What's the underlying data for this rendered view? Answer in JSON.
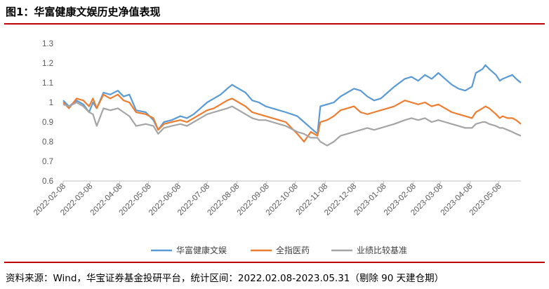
{
  "title": "图1：华富健康文娱历史净值表现",
  "source": "资料来源：Wind，华宝证券基金投研平台，统计区间：2022.02.08-2023.05.31（剔除 90 天建仓期）",
  "colors": {
    "rule": "#c00000",
    "series": [
      "#5b9bd5",
      "#ed7d31",
      "#a5a5a5"
    ]
  },
  "chart_data": {
    "type": "line",
    "title": "",
    "xlabel": "",
    "ylabel": "",
    "ylim": [
      0.6,
      1.3
    ],
    "yticks": [
      "0.6",
      "0.7",
      "0.8",
      "0.9",
      "1",
      "1.1",
      "1.2",
      "1.3"
    ],
    "xlim": [
      "2022-02-08",
      "2023-05-31"
    ],
    "xticks": [
      "2022-02-08",
      "2022-03-08",
      "2022-04-08",
      "2022-05-08",
      "2022-06-08",
      "2022-07-08",
      "2022-08-08",
      "2022-09-08",
      "2022-10-08",
      "2022-11-08",
      "2022-12-08",
      "2023-01-08",
      "2023-02-08",
      "2023-03-08",
      "2023-04-08",
      "2023-05-08"
    ],
    "grid": false,
    "legend": "bottom",
    "series": [
      {
        "name": "华富健康文娱",
        "points": [
          [
            "2022-02-08",
            1.01
          ],
          [
            "2022-02-14",
            0.98
          ],
          [
            "2022-02-22",
            1.01
          ],
          [
            "2022-03-01",
            0.99
          ],
          [
            "2022-03-07",
            0.95
          ],
          [
            "2022-03-11",
            1.0
          ],
          [
            "2022-03-15",
            0.97
          ],
          [
            "2022-03-22",
            1.05
          ],
          [
            "2022-03-29",
            1.04
          ],
          [
            "2022-04-06",
            1.06
          ],
          [
            "2022-04-12",
            1.03
          ],
          [
            "2022-04-18",
            1.04
          ],
          [
            "2022-04-25",
            0.96
          ],
          [
            "2022-05-05",
            0.95
          ],
          [
            "2022-05-13",
            0.91
          ],
          [
            "2022-05-18",
            0.86
          ],
          [
            "2022-05-24",
            0.9
          ],
          [
            "2022-06-01",
            0.91
          ],
          [
            "2022-06-10",
            0.93
          ],
          [
            "2022-06-17",
            0.92
          ],
          [
            "2022-06-24",
            0.94
          ],
          [
            "2022-07-01",
            0.97
          ],
          [
            "2022-07-08",
            1.0
          ],
          [
            "2022-07-15",
            1.02
          ],
          [
            "2022-07-22",
            1.04
          ],
          [
            "2022-07-29",
            1.07
          ],
          [
            "2022-08-03",
            1.09
          ],
          [
            "2022-08-10",
            1.07
          ],
          [
            "2022-08-17",
            1.05
          ],
          [
            "2022-08-24",
            1.01
          ],
          [
            "2022-08-31",
            1.0
          ],
          [
            "2022-09-07",
            0.98
          ],
          [
            "2022-09-14",
            0.97
          ],
          [
            "2022-09-21",
            0.96
          ],
          [
            "2022-09-28",
            0.95
          ],
          [
            "2022-10-10",
            0.93
          ],
          [
            "2022-10-17",
            0.9
          ],
          [
            "2022-10-24",
            0.87
          ],
          [
            "2022-10-31",
            0.84
          ],
          [
            "2022-11-03",
            0.98
          ],
          [
            "2022-11-10",
            0.99
          ],
          [
            "2022-11-17",
            1.0
          ],
          [
            "2022-11-24",
            1.03
          ],
          [
            "2022-12-01",
            1.05
          ],
          [
            "2022-12-08",
            1.07
          ],
          [
            "2022-12-15",
            1.06
          ],
          [
            "2022-12-22",
            1.03
          ],
          [
            "2022-12-29",
            1.01
          ],
          [
            "2023-01-05",
            1.02
          ],
          [
            "2023-01-12",
            1.05
          ],
          [
            "2023-01-19",
            1.08
          ],
          [
            "2023-01-30",
            1.12
          ],
          [
            "2023-02-06",
            1.13
          ],
          [
            "2023-02-13",
            1.11
          ],
          [
            "2023-02-20",
            1.14
          ],
          [
            "2023-02-27",
            1.12
          ],
          [
            "2023-03-06",
            1.15
          ],
          [
            "2023-03-13",
            1.12
          ],
          [
            "2023-03-20",
            1.09
          ],
          [
            "2023-03-27",
            1.07
          ],
          [
            "2023-04-03",
            1.06
          ],
          [
            "2023-04-10",
            1.08
          ],
          [
            "2023-04-14",
            1.15
          ],
          [
            "2023-04-21",
            1.17
          ],
          [
            "2023-04-24",
            1.19
          ],
          [
            "2023-04-28",
            1.17
          ],
          [
            "2023-05-05",
            1.14
          ],
          [
            "2023-05-09",
            1.11
          ],
          [
            "2023-05-12",
            1.12
          ],
          [
            "2023-05-17",
            1.13
          ],
          [
            "2023-05-22",
            1.14
          ],
          [
            "2023-05-26",
            1.12
          ],
          [
            "2023-05-31",
            1.1
          ]
        ]
      },
      {
        "name": "全指医药",
        "points": [
          [
            "2022-02-08",
            1.0
          ],
          [
            "2022-02-14",
            0.97
          ],
          [
            "2022-02-22",
            1.02
          ],
          [
            "2022-03-01",
            1.01
          ],
          [
            "2022-03-07",
            0.98
          ],
          [
            "2022-03-11",
            1.02
          ],
          [
            "2022-03-15",
            0.97
          ],
          [
            "2022-03-22",
            1.04
          ],
          [
            "2022-03-29",
            1.02
          ],
          [
            "2022-04-06",
            1.04
          ],
          [
            "2022-04-12",
            1.01
          ],
          [
            "2022-04-18",
            1.0
          ],
          [
            "2022-04-25",
            0.95
          ],
          [
            "2022-05-05",
            0.94
          ],
          [
            "2022-05-13",
            0.92
          ],
          [
            "2022-05-18",
            0.86
          ],
          [
            "2022-05-24",
            0.89
          ],
          [
            "2022-06-01",
            0.9
          ],
          [
            "2022-06-10",
            0.91
          ],
          [
            "2022-06-17",
            0.9
          ],
          [
            "2022-06-24",
            0.92
          ],
          [
            "2022-07-01",
            0.94
          ],
          [
            "2022-07-08",
            0.96
          ],
          [
            "2022-07-15",
            0.97
          ],
          [
            "2022-07-22",
            0.99
          ],
          [
            "2022-07-29",
            1.01
          ],
          [
            "2022-08-03",
            1.02
          ],
          [
            "2022-08-10",
            1.0
          ],
          [
            "2022-08-17",
            0.98
          ],
          [
            "2022-08-24",
            0.95
          ],
          [
            "2022-08-31",
            0.94
          ],
          [
            "2022-09-07",
            0.93
          ],
          [
            "2022-09-14",
            0.92
          ],
          [
            "2022-09-21",
            0.91
          ],
          [
            "2022-09-28",
            0.9
          ],
          [
            "2022-10-10",
            0.84
          ],
          [
            "2022-10-17",
            0.8
          ],
          [
            "2022-10-24",
            0.85
          ],
          [
            "2022-10-31",
            0.83
          ],
          [
            "2022-11-03",
            0.9
          ],
          [
            "2022-11-10",
            0.91
          ],
          [
            "2022-11-17",
            0.93
          ],
          [
            "2022-11-24",
            0.96
          ],
          [
            "2022-12-01",
            0.97
          ],
          [
            "2022-12-08",
            0.98
          ],
          [
            "2022-12-15",
            0.95
          ],
          [
            "2022-12-22",
            0.94
          ],
          [
            "2022-12-29",
            0.95
          ],
          [
            "2023-01-05",
            0.96
          ],
          [
            "2023-01-12",
            0.97
          ],
          [
            "2023-01-19",
            0.98
          ],
          [
            "2023-01-30",
            1.01
          ],
          [
            "2023-02-06",
            1.0
          ],
          [
            "2023-02-13",
            0.99
          ],
          [
            "2023-02-20",
            1.0
          ],
          [
            "2023-02-27",
            0.98
          ],
          [
            "2023-03-06",
            0.99
          ],
          [
            "2023-03-13",
            0.97
          ],
          [
            "2023-03-20",
            0.95
          ],
          [
            "2023-03-27",
            0.94
          ],
          [
            "2023-04-03",
            0.93
          ],
          [
            "2023-04-10",
            0.92
          ],
          [
            "2023-04-14",
            0.95
          ],
          [
            "2023-04-21",
            0.97
          ],
          [
            "2023-04-24",
            0.98
          ],
          [
            "2023-04-28",
            0.97
          ],
          [
            "2023-05-05",
            0.94
          ],
          [
            "2023-05-09",
            0.92
          ],
          [
            "2023-05-12",
            0.93
          ],
          [
            "2023-05-17",
            0.92
          ],
          [
            "2023-05-22",
            0.92
          ],
          [
            "2023-05-26",
            0.91
          ],
          [
            "2023-05-31",
            0.89
          ]
        ]
      },
      {
        "name": "业绩比较基准",
        "points": [
          [
            "2022-02-08",
            0.99
          ],
          [
            "2022-02-14",
            0.98
          ],
          [
            "2022-02-22",
            1.0
          ],
          [
            "2022-03-01",
            0.98
          ],
          [
            "2022-03-07",
            0.95
          ],
          [
            "2022-03-11",
            0.94
          ],
          [
            "2022-03-15",
            0.88
          ],
          [
            "2022-03-22",
            0.97
          ],
          [
            "2022-03-29",
            0.96
          ],
          [
            "2022-04-06",
            0.97
          ],
          [
            "2022-04-12",
            0.95
          ],
          [
            "2022-04-18",
            0.93
          ],
          [
            "2022-04-25",
            0.88
          ],
          [
            "2022-05-05",
            0.89
          ],
          [
            "2022-05-13",
            0.88
          ],
          [
            "2022-05-18",
            0.84
          ],
          [
            "2022-05-24",
            0.87
          ],
          [
            "2022-06-01",
            0.88
          ],
          [
            "2022-06-10",
            0.89
          ],
          [
            "2022-06-17",
            0.88
          ],
          [
            "2022-06-24",
            0.9
          ],
          [
            "2022-07-01",
            0.92
          ],
          [
            "2022-07-08",
            0.94
          ],
          [
            "2022-07-15",
            0.95
          ],
          [
            "2022-07-22",
            0.96
          ],
          [
            "2022-07-29",
            0.97
          ],
          [
            "2022-08-03",
            0.98
          ],
          [
            "2022-08-10",
            0.96
          ],
          [
            "2022-08-17",
            0.94
          ],
          [
            "2022-08-24",
            0.92
          ],
          [
            "2022-08-31",
            0.91
          ],
          [
            "2022-09-07",
            0.91
          ],
          [
            "2022-09-14",
            0.9
          ],
          [
            "2022-09-21",
            0.89
          ],
          [
            "2022-09-28",
            0.88
          ],
          [
            "2022-10-10",
            0.85
          ],
          [
            "2022-10-17",
            0.84
          ],
          [
            "2022-10-24",
            0.82
          ],
          [
            "2022-10-31",
            0.82
          ],
          [
            "2022-11-03",
            0.8
          ],
          [
            "2022-11-10",
            0.78
          ],
          [
            "2022-11-17",
            0.8
          ],
          [
            "2022-11-24",
            0.83
          ],
          [
            "2022-12-01",
            0.84
          ],
          [
            "2022-12-08",
            0.85
          ],
          [
            "2022-12-15",
            0.86
          ],
          [
            "2022-12-22",
            0.87
          ],
          [
            "2022-12-29",
            0.86
          ],
          [
            "2023-01-05",
            0.87
          ],
          [
            "2023-01-12",
            0.88
          ],
          [
            "2023-01-19",
            0.89
          ],
          [
            "2023-01-30",
            0.91
          ],
          [
            "2023-02-06",
            0.92
          ],
          [
            "2023-02-13",
            0.91
          ],
          [
            "2023-02-20",
            0.92
          ],
          [
            "2023-02-27",
            0.9
          ],
          [
            "2023-03-06",
            0.91
          ],
          [
            "2023-03-13",
            0.9
          ],
          [
            "2023-03-20",
            0.89
          ],
          [
            "2023-03-27",
            0.88
          ],
          [
            "2023-04-03",
            0.87
          ],
          [
            "2023-04-10",
            0.87
          ],
          [
            "2023-04-14",
            0.89
          ],
          [
            "2023-04-21",
            0.9
          ],
          [
            "2023-04-24",
            0.9
          ],
          [
            "2023-04-28",
            0.89
          ],
          [
            "2023-05-05",
            0.88
          ],
          [
            "2023-05-09",
            0.87
          ],
          [
            "2023-05-12",
            0.87
          ],
          [
            "2023-05-17",
            0.86
          ],
          [
            "2023-05-22",
            0.85
          ],
          [
            "2023-05-26",
            0.84
          ],
          [
            "2023-05-31",
            0.83
          ]
        ]
      }
    ]
  }
}
